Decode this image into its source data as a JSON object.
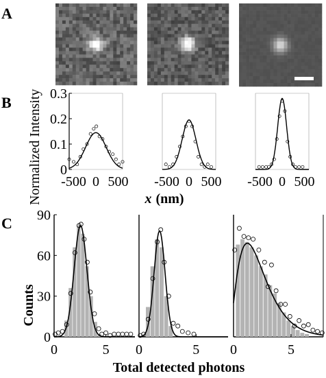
{
  "panels": {
    "a": "A",
    "b": "B",
    "c": "C"
  },
  "panel_b": {
    "ylabel": "Normalized Intensity",
    "xlabel_var": "x",
    "xlabel_unit": "(nm)",
    "ytick_labels": [
      "0",
      "0.1",
      "0.2",
      "0.3"
    ],
    "xtick_labels": [
      "-500",
      "0",
      "500"
    ]
  },
  "panel_c": {
    "ylabel": "Counts",
    "xlabel": "Total detected photons",
    "ytick_labels": [
      "0",
      "30",
      "60",
      "90"
    ],
    "xtick_labels": [
      "0",
      "5"
    ]
  },
  "colors": {
    "bar": "#b3b3b3",
    "line": "#000000",
    "marker_edge": "#000000",
    "image_bright": "#ffffff",
    "image_dark": "#333333"
  },
  "chart_data": [
    {
      "type": "image",
      "id": "A1",
      "spot_peak": 0.8,
      "noise": 0.35
    },
    {
      "type": "image",
      "id": "A2",
      "spot_peak": 0.95,
      "noise": 0.3
    },
    {
      "type": "image",
      "id": "A3",
      "spot_peak": 0.65,
      "noise": 0.05,
      "scale_bar": true
    },
    {
      "type": "scatter",
      "id": "B1",
      "xlim": [
        -600,
        600
      ],
      "ylim": [
        0,
        0.3
      ],
      "fit": {
        "amplitude": 0.145,
        "sigma": 230,
        "center": 0
      },
      "points": [
        [
          -600,
          0.04
        ],
        [
          -500,
          0.03
        ],
        [
          -420,
          0.02
        ],
        [
          -350,
          0.05
        ],
        [
          -280,
          0.08
        ],
        [
          -200,
          0.1
        ],
        [
          -120,
          0.14
        ],
        [
          -50,
          0.16
        ],
        [
          10,
          0.17
        ],
        [
          80,
          0.13
        ],
        [
          150,
          0.12
        ],
        [
          230,
          0.09
        ],
        [
          300,
          0.07
        ],
        [
          380,
          0.06
        ],
        [
          450,
          0.04
        ],
        [
          520,
          0.02
        ],
        [
          600,
          0.03
        ]
      ]
    },
    {
      "type": "scatter",
      "id": "B2",
      "xlim": [
        -600,
        600
      ],
      "ylim": [
        0,
        0.3
      ],
      "fit": {
        "amplitude": 0.195,
        "sigma": 155,
        "center": 0
      },
      "points": [
        [
          -520,
          0.02
        ],
        [
          -440,
          0.01
        ],
        [
          -360,
          0.02
        ],
        [
          -280,
          0.05
        ],
        [
          -210,
          0.09
        ],
        [
          -140,
          0.13
        ],
        [
          -70,
          0.17
        ],
        [
          0,
          0.19
        ],
        [
          70,
          0.17
        ],
        [
          140,
          0.11
        ],
        [
          210,
          0.05
        ],
        [
          280,
          0.02
        ],
        [
          350,
          0.01
        ],
        [
          420,
          0.02
        ],
        [
          500,
          0.01
        ]
      ]
    },
    {
      "type": "scatter",
      "id": "B3",
      "xlim": [
        -600,
        600
      ],
      "ylim": [
        0,
        0.3
      ],
      "fit": {
        "amplitude": 0.28,
        "sigma": 100,
        "center": 0
      },
      "points": [
        [
          -520,
          0.01
        ],
        [
          -440,
          0.01
        ],
        [
          -360,
          0.01
        ],
        [
          -300,
          0.01
        ],
        [
          -240,
          0.02
        ],
        [
          -180,
          0.04
        ],
        [
          -120,
          0.12
        ],
        [
          -60,
          0.21
        ],
        [
          0,
          0.27
        ],
        [
          60,
          0.23
        ],
        [
          120,
          0.11
        ],
        [
          180,
          0.05
        ],
        [
          240,
          0.02
        ],
        [
          300,
          0.01
        ],
        [
          380,
          0.01
        ],
        [
          460,
          0.01
        ]
      ]
    },
    {
      "type": "bar",
      "id": "C1",
      "xlim": [
        0,
        7.8
      ],
      "ylim": [
        0,
        90
      ],
      "bin_width": 0.4,
      "bars": [
        [
          1.2,
          12
        ],
        [
          1.6,
          36
        ],
        [
          2.0,
          66
        ],
        [
          2.4,
          82
        ],
        [
          2.8,
          76
        ],
        [
          3.2,
          52
        ],
        [
          3.6,
          30
        ],
        [
          4.0,
          11
        ],
        [
          4.4,
          2
        ]
      ],
      "fit": {
        "amplitude": 82,
        "mu": 2.55,
        "sigma": 0.62
      },
      "points": [
        [
          0.1,
          2
        ],
        [
          0.4,
          3
        ],
        [
          0.8,
          4
        ],
        [
          1.2,
          9
        ],
        [
          1.6,
          32
        ],
        [
          2.0,
          62
        ],
        [
          2.4,
          82
        ],
        [
          2.6,
          83
        ],
        [
          2.9,
          72
        ],
        [
          3.2,
          55
        ],
        [
          3.5,
          33
        ],
        [
          3.9,
          17
        ],
        [
          4.3,
          6
        ],
        [
          4.6,
          2
        ],
        [
          5.0,
          3
        ],
        [
          5.4,
          1
        ],
        [
          5.8,
          2
        ],
        [
          6.2,
          2
        ],
        [
          6.6,
          2
        ],
        [
          7.0,
          2
        ],
        [
          7.4,
          2
        ]
      ]
    },
    {
      "type": "bar",
      "id": "C2",
      "xlim": [
        0,
        7.8
      ],
      "ylim": [
        0,
        90
      ],
      "bin_width": 0.4,
      "bars": [
        [
          0.8,
          22
        ],
        [
          1.2,
          52
        ],
        [
          1.6,
          72
        ],
        [
          2.0,
          66
        ],
        [
          2.4,
          30
        ],
        [
          2.8,
          8
        ]
      ],
      "fit": {
        "amplitude": 78,
        "mu": 1.8,
        "sigma": 0.48
      },
      "points": [
        [
          0.1,
          1
        ],
        [
          0.4,
          2
        ],
        [
          0.8,
          13
        ],
        [
          1.2,
          43
        ],
        [
          1.6,
          70
        ],
        [
          1.9,
          79
        ],
        [
          2.2,
          55
        ],
        [
          2.6,
          30
        ],
        [
          3.0,
          10
        ],
        [
          3.4,
          8
        ],
        [
          3.8,
          4
        ],
        [
          4.3,
          3
        ],
        [
          4.8,
          2
        ]
      ]
    },
    {
      "type": "bar",
      "id": "C3",
      "xlim": [
        0,
        7.8
      ],
      "ylim": [
        0,
        90
      ],
      "bin_width": 0.4,
      "bars": [
        [
          0.4,
          68
        ],
        [
          0.8,
          72
        ],
        [
          1.2,
          70
        ],
        [
          1.6,
          66
        ],
        [
          2.0,
          60
        ],
        [
          2.4,
          52
        ],
        [
          2.8,
          46
        ],
        [
          3.2,
          38
        ],
        [
          3.6,
          32
        ],
        [
          4.0,
          25
        ],
        [
          4.4,
          18
        ],
        [
          4.8,
          12
        ],
        [
          5.2,
          8
        ],
        [
          5.6,
          5
        ],
        [
          6.0,
          3
        ],
        [
          6.4,
          2
        ]
      ],
      "fit": {
        "type": "gamma-like",
        "peak_x": 1.2,
        "peak_y": 69
      },
      "points": [
        [
          0.1,
          64
        ],
        [
          0.5,
          80
        ],
        [
          0.9,
          74
        ],
        [
          1.3,
          73
        ],
        [
          1.7,
          72
        ],
        [
          2.2,
          64
        ],
        [
          2.7,
          55
        ],
        [
          3.0,
          37
        ],
        [
          3.3,
          53
        ],
        [
          3.7,
          34
        ],
        [
          4.1,
          24
        ],
        [
          4.5,
          24
        ],
        [
          4.9,
          15
        ],
        [
          5.3,
          8
        ],
        [
          5.7,
          12
        ],
        [
          6.1,
          8
        ],
        [
          6.5,
          9
        ],
        [
          6.9,
          5
        ],
        [
          7.3,
          4
        ],
        [
          7.7,
          3
        ]
      ]
    }
  ]
}
